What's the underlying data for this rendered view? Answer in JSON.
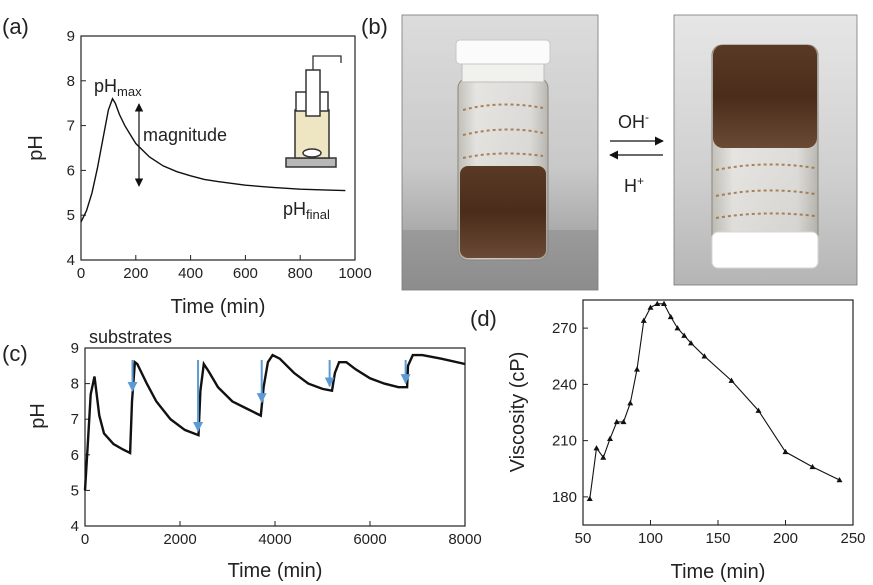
{
  "panels": {
    "a": "(a)",
    "b": "(b)",
    "c": "(c)",
    "d": "(d)"
  },
  "photo_annotations": {
    "forward": "OH",
    "forward_sup": "-",
    "backward": "H",
    "backward_sup": "+"
  },
  "chart_data": [
    {
      "id": "a",
      "type": "line",
      "xlabel": "Time (min)",
      "ylabel": "pH",
      "xlim": [
        0,
        1000
      ],
      "ylim": [
        4,
        9
      ],
      "xticks": [
        0,
        200,
        400,
        600,
        800,
        1000
      ],
      "yticks": [
        4,
        5,
        6,
        7,
        8,
        9
      ],
      "grid": false,
      "x": [
        0,
        20,
        40,
        60,
        80,
        100,
        115,
        125,
        140,
        160,
        180,
        200,
        250,
        300,
        350,
        400,
        450,
        500,
        600,
        700,
        800,
        900,
        965
      ],
      "y": [
        4.85,
        5.1,
        5.5,
        6.05,
        6.7,
        7.35,
        7.6,
        7.5,
        7.25,
        7.0,
        6.8,
        6.6,
        6.3,
        6.1,
        5.97,
        5.88,
        5.8,
        5.75,
        5.67,
        5.62,
        5.58,
        5.56,
        5.55
      ],
      "annotations": {
        "ph_max_main": "pH",
        "ph_max_sub": "max",
        "magnitude": "magnitude",
        "ph_final_main": "pH",
        "ph_final_sub": "final"
      }
    },
    {
      "id": "c",
      "type": "line",
      "xlabel": "Time (min)",
      "ylabel": "pH",
      "xlim": [
        0,
        8000
      ],
      "ylim": [
        4,
        9
      ],
      "xticks": [
        0,
        2000,
        4000,
        6000,
        8000
      ],
      "yticks": [
        4,
        5,
        6,
        7,
        8,
        9
      ],
      "grid": false,
      "x": [
        0,
        60,
        120,
        200,
        300,
        400,
        600,
        800,
        950,
        990,
        1050,
        1100,
        1300,
        1500,
        1800,
        2100,
        2390,
        2430,
        2500,
        2600,
        2800,
        3100,
        3400,
        3700,
        3760,
        3850,
        3950,
        4100,
        4400,
        4700,
        5000,
        5200,
        5260,
        5350,
        5500,
        5700,
        6000,
        6300,
        6600,
        6780,
        6800,
        6900,
        7100,
        7500,
        8000
      ],
      "y": [
        5.0,
        6.3,
        7.7,
        8.2,
        7.1,
        6.6,
        6.3,
        6.15,
        6.05,
        7.5,
        8.6,
        8.55,
        8.0,
        7.5,
        7.0,
        6.7,
        6.55,
        7.8,
        8.55,
        8.35,
        7.9,
        7.5,
        7.3,
        7.1,
        7.9,
        8.6,
        8.8,
        8.7,
        8.3,
        8.0,
        7.85,
        7.8,
        8.3,
        8.6,
        8.6,
        8.4,
        8.15,
        8.0,
        7.9,
        7.9,
        8.5,
        8.8,
        8.8,
        8.7,
        8.55
      ],
      "arrow_times": [
        1000,
        2380,
        3720,
        5150,
        6750
      ],
      "arrow_label": "substrates"
    },
    {
      "id": "d",
      "type": "line",
      "xlabel": "Time (min)",
      "ylabel": "Viscosity (cP)",
      "xlim": [
        50,
        250
      ],
      "ylim": [
        165,
        285
      ],
      "xticks": [
        50,
        100,
        150,
        200,
        250
      ],
      "yticks": [
        180,
        210,
        240,
        270
      ],
      "grid": false,
      "x": [
        55,
        60,
        65,
        70,
        75,
        80,
        85,
        90,
        95,
        100,
        105,
        110,
        115,
        120,
        125,
        130,
        140,
        160,
        180,
        200,
        220,
        240
      ],
      "y": [
        179,
        206,
        201,
        211,
        220,
        220,
        230,
        248,
        274,
        281,
        283,
        283,
        276,
        270,
        266,
        262,
        255,
        242,
        226,
        204,
        196,
        189
      ]
    }
  ]
}
